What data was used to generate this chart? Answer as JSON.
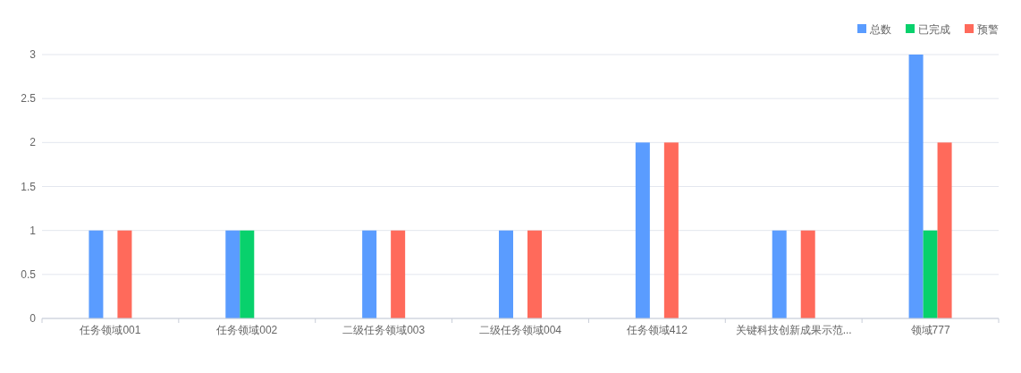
{
  "chart_data": {
    "type": "bar",
    "categories": [
      "任务领域001",
      "任务领域002",
      "二级任务领域003",
      "二级任务领域004",
      "任务领域412",
      "关键科技创新成果示范...",
      "领域777"
    ],
    "series": [
      {
        "name": "总数",
        "color": "#5a9cff",
        "values": [
          1,
          1,
          1,
          1,
          2,
          1,
          3
        ]
      },
      {
        "name": "已完成",
        "color": "#08d16c",
        "values": [
          0,
          1,
          0,
          0,
          0,
          0,
          1
        ]
      },
      {
        "name": "预警",
        "color": "#ff6a5b",
        "values": [
          1,
          0,
          1,
          1,
          2,
          1,
          2
        ]
      }
    ],
    "ylim": [
      0,
      3
    ],
    "yticks": [
      0,
      0.5,
      1,
      1.5,
      2,
      2.5,
      3
    ],
    "grid": "y",
    "legend": "top right"
  }
}
